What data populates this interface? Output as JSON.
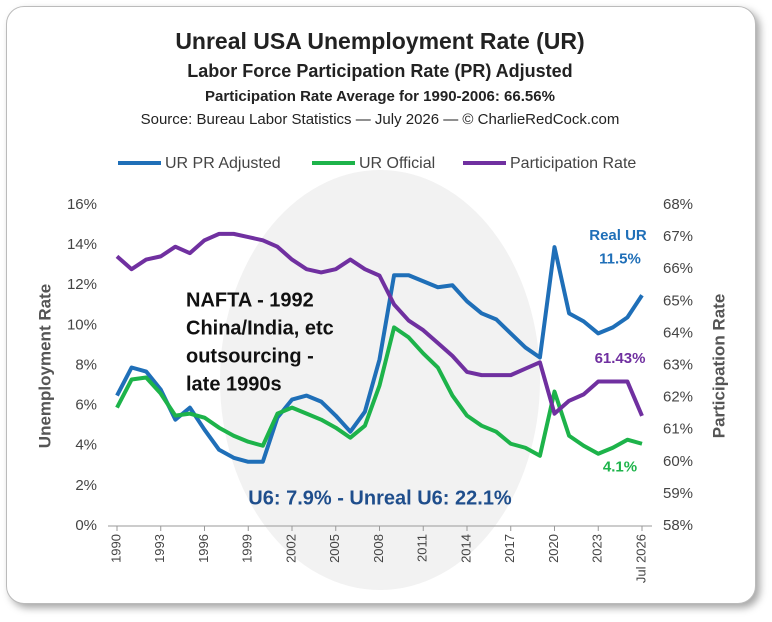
{
  "chart_data": {
    "type": "line",
    "title": "Unreal USA Unemployment Rate (UR)",
    "subtitle": "Labor Force Participation Rate (PR) Adjusted",
    "subtitle2": "Participation Rate Average for 1990-2006: 66.56%",
    "source": "Source: Bureau Labor Statistics — July 2026 — © CharlieRedCock.com",
    "y_label": "Unemployment Rate",
    "y2_label": "Participation Rate",
    "x": [
      1990,
      1991,
      1992,
      1993,
      1994,
      1995,
      1996,
      1997,
      1998,
      1999,
      2000,
      2001,
      2002,
      2003,
      2004,
      2005,
      2006,
      2007,
      2008,
      2009,
      2010,
      2011,
      2012,
      2013,
      2014,
      2015,
      2016,
      2017,
      2018,
      2019,
      2020,
      2021,
      2022,
      2023,
      2024,
      2025,
      2026
    ],
    "xlim": [
      1990,
      2026
    ],
    "xticks": [
      1990,
      1993,
      1996,
      1999,
      2002,
      2005,
      2008,
      2011,
      2014,
      2017,
      2020,
      2023,
      {
        "value": 2026,
        "label": "Jul 2026"
      }
    ],
    "ylim": [
      0,
      16
    ],
    "yticks": [
      {
        "value": 0,
        "label": "0%"
      },
      {
        "value": 2,
        "label": "2%"
      },
      {
        "value": 4,
        "label": "4%"
      },
      {
        "value": 6,
        "label": "6%"
      },
      {
        "value": 8,
        "label": "8%"
      },
      {
        "value": 10,
        "label": "10%"
      },
      {
        "value": 12,
        "label": "12%"
      },
      {
        "value": 14,
        "label": "14%"
      },
      {
        "value": 16,
        "label": "16%"
      }
    ],
    "y2lim": [
      58,
      68
    ],
    "y2ticks": [
      {
        "value": 58,
        "label": "58%"
      },
      {
        "value": 59,
        "label": "59%"
      },
      {
        "value": 60,
        "label": "60%"
      },
      {
        "value": 61,
        "label": "61%"
      },
      {
        "value": 62,
        "label": "62%"
      },
      {
        "value": 63,
        "label": "63%"
      },
      {
        "value": 64,
        "label": "64%"
      },
      {
        "value": 65,
        "label": "65%"
      },
      {
        "value": 66,
        "label": "66%"
      },
      {
        "value": 67,
        "label": "67%"
      },
      {
        "value": 68,
        "label": "68%"
      }
    ],
    "series": [
      {
        "name": "UR PR Adjusted",
        "color": "#1f6fb8",
        "values": [
          6.5,
          7.9,
          7.7,
          6.8,
          5.3,
          5.9,
          4.8,
          3.8,
          3.4,
          3.2,
          3.2,
          5.4,
          6.3,
          6.5,
          6.2,
          5.5,
          4.7,
          5.7,
          8.3,
          12.5,
          12.5,
          12.2,
          11.9,
          12.0,
          11.2,
          10.6,
          10.3,
          9.6,
          8.9,
          8.4,
          13.9,
          10.6,
          10.2,
          9.6,
          9.9,
          10.4,
          11.5
        ],
        "value_labels": [
          null,
          null,
          null,
          null,
          null,
          null,
          null,
          null,
          null,
          null,
          null,
          null,
          null,
          null,
          null,
          null,
          null,
          null,
          null,
          null,
          null,
          null,
          null,
          null,
          null,
          null,
          null,
          null,
          null,
          null,
          null,
          null,
          null,
          null,
          null,
          null,
          "11.5%"
        ]
      },
      {
        "name": "UR Official",
        "color": "#1db34a",
        "values": [
          5.9,
          7.3,
          7.4,
          6.6,
          5.5,
          5.6,
          5.4,
          4.9,
          4.5,
          4.2,
          4.0,
          5.6,
          5.9,
          5.6,
          5.3,
          4.9,
          4.4,
          5.0,
          7.0,
          9.9,
          9.4,
          8.6,
          7.9,
          6.5,
          5.5,
          5.0,
          4.7,
          4.1,
          3.9,
          3.5,
          6.7,
          4.5,
          4.0,
          3.6,
          3.9,
          4.3,
          4.1
        ],
        "value_labels": [
          null,
          null,
          null,
          null,
          null,
          null,
          null,
          null,
          null,
          null,
          null,
          null,
          null,
          null,
          null,
          null,
          null,
          null,
          null,
          null,
          null,
          null,
          null,
          null,
          null,
          null,
          null,
          null,
          null,
          null,
          null,
          null,
          null,
          null,
          null,
          null,
          "4.1%"
        ]
      },
      {
        "name": "Participation Rate",
        "color": "#7030a0",
        "axis": "y2",
        "values": [
          66.4,
          66.0,
          66.3,
          66.4,
          66.7,
          66.5,
          66.9,
          67.1,
          67.1,
          67.0,
          66.9,
          66.7,
          66.3,
          66.0,
          65.9,
          66.0,
          66.3,
          66.0,
          65.8,
          64.9,
          64.4,
          64.1,
          63.7,
          63.3,
          62.8,
          62.7,
          62.7,
          62.7,
          62.9,
          63.1,
          61.5,
          61.9,
          62.1,
          62.5,
          62.5,
          62.5,
          61.43
        ],
        "value_labels": [
          null,
          null,
          null,
          null,
          null,
          null,
          null,
          null,
          null,
          null,
          null,
          null,
          null,
          null,
          null,
          null,
          null,
          null,
          null,
          null,
          null,
          null,
          null,
          null,
          null,
          null,
          null,
          null,
          null,
          null,
          null,
          null,
          null,
          null,
          null,
          null,
          "61.43%"
        ]
      }
    ],
    "annotations": {
      "real_ur": "Real UR",
      "nafta": [
        "NAFTA - 1992",
        "China/India, etc",
        "outsourcing -",
        "late 1990s"
      ],
      "u6": "U6: 7.9% - Unreal U6: 22.1%"
    },
    "legend": "top",
    "grid": false
  }
}
